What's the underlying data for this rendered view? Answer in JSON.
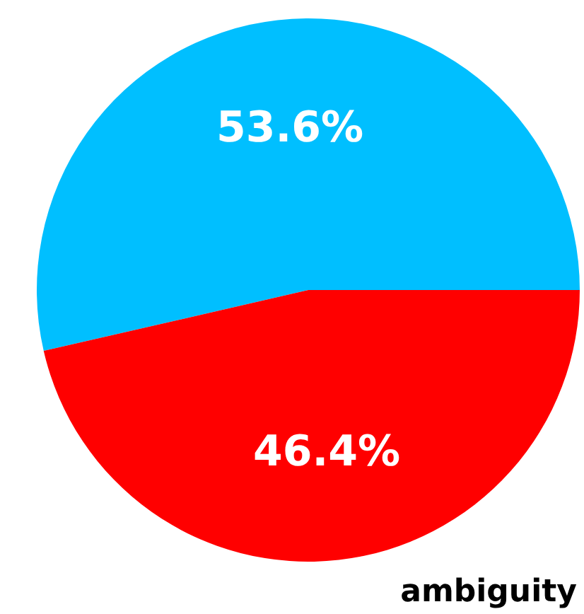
{
  "chart_data": {
    "type": "pie",
    "xlabel": "ambiguity",
    "categories": [
      null,
      null
    ],
    "values": [
      53.6,
      46.4
    ],
    "colors": [
      "#00bfff",
      "#ff0000"
    ],
    "value_labels": [
      "53.6%",
      "46.4%"
    ],
    "legend": false
  }
}
